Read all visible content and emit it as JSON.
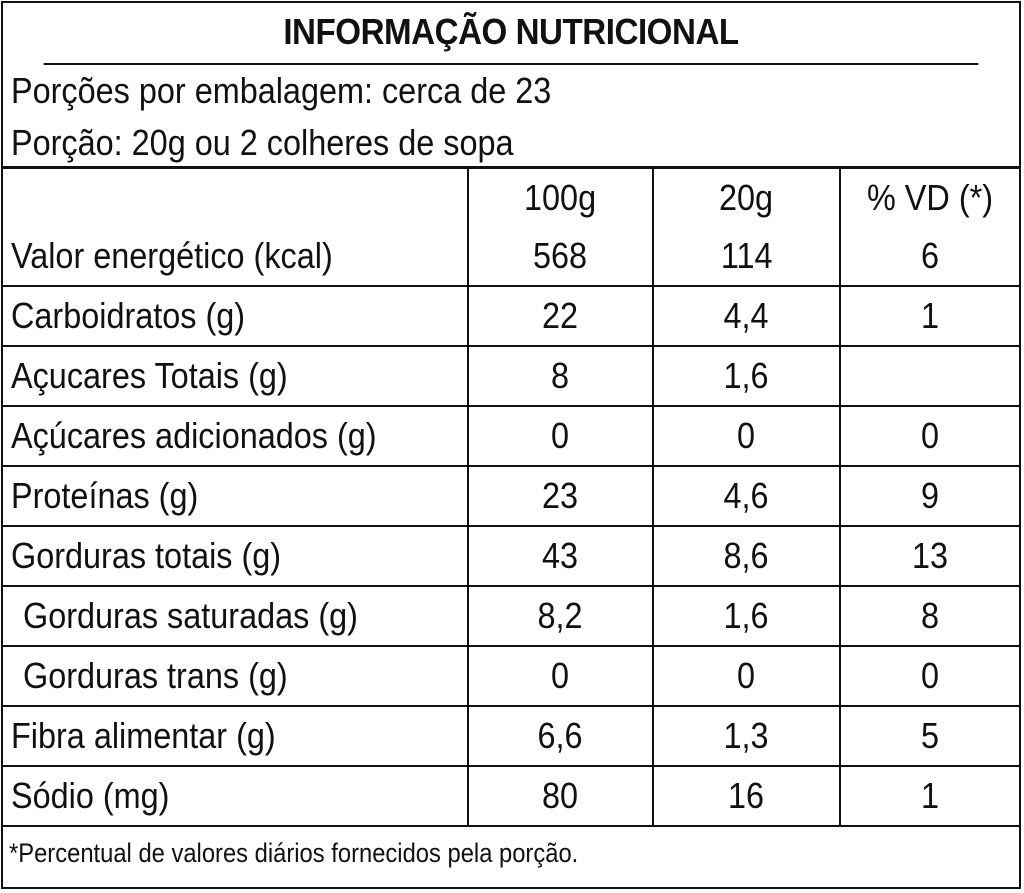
{
  "title": "INFORMAÇÃO NUTRICIONAL",
  "servings_per_package": "Porções por embalagem: cerca de 23",
  "serving_size": "Porção: 20g ou 2 colheres de sopa",
  "columns": [
    "",
    "100g",
    "20g",
    "% VD (*)"
  ],
  "rows": [
    {
      "name": "Valor energético (kcal)",
      "per100": "568",
      "per20": "114",
      "vd": "6",
      "indent": false
    },
    {
      "name": "Carboidratos (g)",
      "per100": "22",
      "per20": "4,4",
      "vd": "1",
      "indent": false
    },
    {
      "name": "Açucares Totais (g)",
      "per100": "8",
      "per20": "1,6",
      "vd": "",
      "indent": false
    },
    {
      "name": "Açúcares adicionados (g)",
      "per100": "0",
      "per20": "0",
      "vd": "0",
      "indent": false
    },
    {
      "name": "Proteínas (g)",
      "per100": "23",
      "per20": "4,6",
      "vd": "9",
      "indent": false
    },
    {
      "name": "Gorduras totais (g)",
      "per100": "43",
      "per20": "8,6",
      "vd": "13",
      "indent": false
    },
    {
      "name": "Gorduras saturadas (g)",
      "per100": "8,2",
      "per20": "1,6",
      "vd": "8",
      "indent": true
    },
    {
      "name": "Gorduras trans (g)",
      "per100": "0",
      "per20": "0",
      "vd": "0",
      "indent": true
    },
    {
      "name": "Fibra alimentar (g)",
      "per100": "6,6",
      "per20": "1,3",
      "vd": "5",
      "indent": false
    },
    {
      "name": "Sódio (mg)",
      "per100": "80",
      "per20": "16",
      "vd": "1",
      "indent": false
    }
  ],
  "footnote": "*Percentual de valores diários fornecidos pela porção."
}
